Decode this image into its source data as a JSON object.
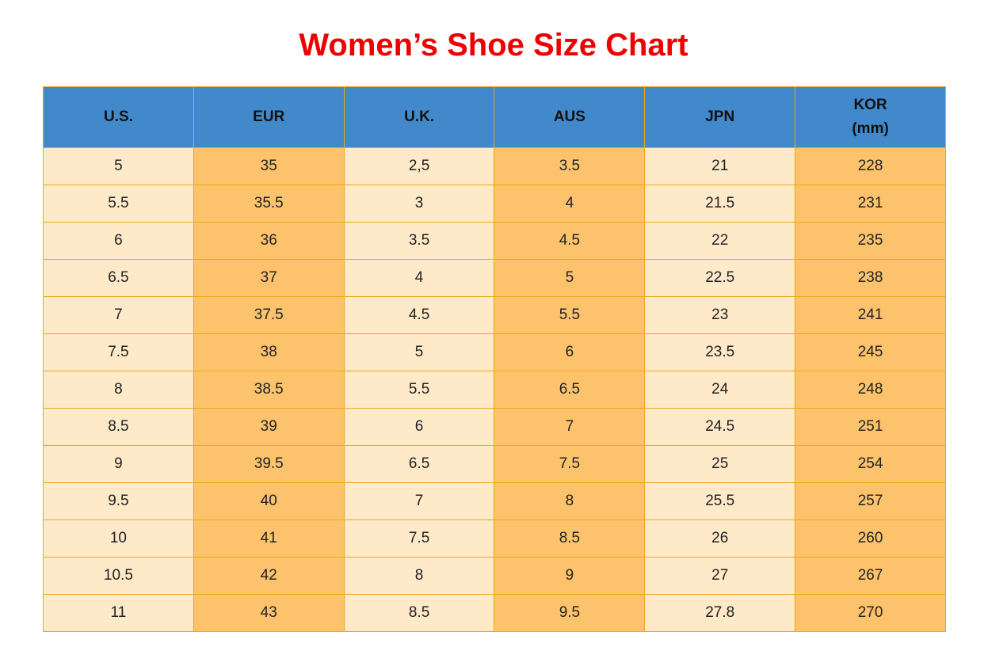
{
  "title": "Women’s Shoe Size Chart",
  "table": {
    "headers": [
      "U.S.",
      "EUR",
      "U.K.",
      "AUS",
      "JPN",
      "KOR\n(mm)"
    ],
    "rows": [
      [
        "5",
        "35",
        "2,5",
        "3.5",
        "21",
        "228"
      ],
      [
        "5.5",
        "35.5",
        "3",
        "4",
        "21.5",
        "231"
      ],
      [
        "6",
        "36",
        "3.5",
        "4.5",
        "22",
        "235"
      ],
      [
        "6.5",
        "37",
        "4",
        "5",
        "22.5",
        "238"
      ],
      [
        "7",
        "37.5",
        "4.5",
        "5.5",
        "23",
        "241"
      ],
      [
        "7.5",
        "38",
        "5",
        "6",
        "23.5",
        "245"
      ],
      [
        "8",
        "38.5",
        "5.5",
        "6.5",
        "24",
        "248"
      ],
      [
        "8.5",
        "39",
        "6",
        "7",
        "24.5",
        "251"
      ],
      [
        "9",
        "39.5",
        "6.5",
        "7.5",
        "25",
        "254"
      ],
      [
        "9.5",
        "40",
        "7",
        "8",
        "25.5",
        "257"
      ],
      [
        "10",
        "41",
        "7.5",
        "8.5",
        "26",
        "260"
      ],
      [
        "10.5",
        "42",
        "8",
        "9",
        "27",
        "267"
      ],
      [
        "11",
        "43",
        "8.5",
        "9.5",
        "27.8",
        "270"
      ]
    ]
  }
}
